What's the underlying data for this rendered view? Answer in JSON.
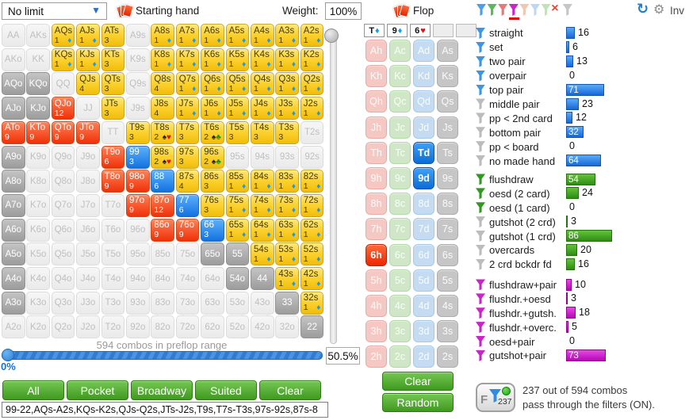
{
  "toolbar": {
    "game_type": "No limit",
    "starting_hand_label": "Starting hand",
    "weight_label": "Weight:",
    "weight_value": "100%",
    "flop_label": "Flop",
    "inv_label": "Inv",
    "funnels": [
      {
        "kind": "funnel",
        "color": "#4a9ef0",
        "selected": false
      },
      {
        "kind": "funnel",
        "color": "#5cb85c",
        "selected": false
      },
      {
        "kind": "funnel",
        "color": "#e87878",
        "selected": false
      },
      {
        "kind": "funnel",
        "color": "#cc22cc",
        "selected": true
      },
      {
        "kind": "funnel",
        "color": "#f0c8b0",
        "selected": false
      },
      {
        "kind": "funnel",
        "color": "#bcd8f2",
        "selected": false
      },
      {
        "kind": "funnel",
        "color": "#c2e2b8",
        "selected": false
      },
      {
        "kind": "x",
        "color": "#e8564a",
        "selected": false
      },
      {
        "kind": "funnel",
        "color": "#c6c6c6",
        "selected": false
      }
    ]
  },
  "hand_grid": {
    "rows": [
      [
        [
          "AA",
          "o"
        ],
        [
          "AKs",
          "o"
        ],
        [
          "AQs",
          "y",
          "1",
          "d"
        ],
        [
          "AJs",
          "y",
          "1",
          "d"
        ],
        [
          "ATs",
          "y",
          "3",
          ""
        ],
        [
          "A9s",
          "o"
        ],
        [
          "A8s",
          "y",
          "1",
          "d"
        ],
        [
          "A7s",
          "y",
          "1",
          "d"
        ],
        [
          "A6s",
          "y",
          "1",
          "d"
        ],
        [
          "A5s",
          "y",
          "1",
          "d"
        ],
        [
          "A4s",
          "y",
          "1",
          "d"
        ],
        [
          "A3s",
          "y",
          "1",
          "d"
        ],
        [
          "A2s",
          "y",
          "1",
          "d"
        ]
      ],
      [
        [
          "AKo",
          "o"
        ],
        [
          "KK",
          "o"
        ],
        [
          "KQs",
          "y",
          "1",
          "d"
        ],
        [
          "KJs",
          "y",
          "1",
          "d"
        ],
        [
          "KTs",
          "y",
          "3",
          ""
        ],
        [
          "K9s",
          "o"
        ],
        [
          "K8s",
          "y",
          "1",
          "d"
        ],
        [
          "K7s",
          "y",
          "1",
          "d"
        ],
        [
          "K6s",
          "y",
          "1",
          "d"
        ],
        [
          "K5s",
          "y",
          "1",
          "d"
        ],
        [
          "K4s",
          "y",
          "1",
          "d"
        ],
        [
          "K3s",
          "y",
          "1",
          "d"
        ],
        [
          "K2s",
          "y",
          "1",
          "d"
        ]
      ],
      [
        [
          "AQo",
          "g"
        ],
        [
          "KQo",
          "g"
        ],
        [
          "QQ",
          "o"
        ],
        [
          "QJs",
          "y",
          "4",
          ""
        ],
        [
          "QTs",
          "y",
          "3",
          ""
        ],
        [
          "Q9s",
          "o"
        ],
        [
          "Q8s",
          "y",
          "4",
          ""
        ],
        [
          "Q7s",
          "y",
          "1",
          "d"
        ],
        [
          "Q6s",
          "y",
          "1",
          "d"
        ],
        [
          "Q5s",
          "y",
          "1",
          "d"
        ],
        [
          "Q4s",
          "y",
          "1",
          "d"
        ],
        [
          "Q3s",
          "y",
          "1",
          "d"
        ],
        [
          "Q2s",
          "y",
          "1",
          "d"
        ]
      ],
      [
        [
          "AJo",
          "g"
        ],
        [
          "KJo",
          "g"
        ],
        [
          "QJo",
          "r",
          "12",
          ""
        ],
        [
          "JJ",
          "o"
        ],
        [
          "JTs",
          "y",
          "3",
          ""
        ],
        [
          "J9s",
          "o"
        ],
        [
          "J8s",
          "y",
          "4",
          ""
        ],
        [
          "J7s",
          "y",
          "1",
          "d"
        ],
        [
          "J6s",
          "y",
          "1",
          "d"
        ],
        [
          "J5s",
          "y",
          "1",
          "d"
        ],
        [
          "J4s",
          "y",
          "1",
          "d"
        ],
        [
          "J3s",
          "y",
          "1",
          "d"
        ],
        [
          "J2s",
          "y",
          "1",
          "d"
        ]
      ],
      [
        [
          "ATo",
          "r",
          "9",
          ""
        ],
        [
          "KTo",
          "r",
          "9",
          ""
        ],
        [
          "QTo",
          "r",
          "9",
          ""
        ],
        [
          "JTo",
          "r",
          "9",
          ""
        ],
        [
          "TT",
          "o"
        ],
        [
          "T9s",
          "y",
          "3",
          ""
        ],
        [
          "T8s",
          "y",
          "2",
          "sh"
        ],
        [
          "T7s",
          "y",
          "3",
          ""
        ],
        [
          "T6s",
          "y",
          "2",
          "sc"
        ],
        [
          "T5s",
          "y",
          "3",
          ""
        ],
        [
          "T4s",
          "y",
          "3",
          ""
        ],
        [
          "T3s",
          "y",
          "3",
          ""
        ],
        [
          "T2s",
          "o"
        ]
      ],
      [
        [
          "A9o",
          "g"
        ],
        [
          "K9o",
          "o"
        ],
        [
          "Q9o",
          "o"
        ],
        [
          "J9o",
          "o"
        ],
        [
          "T9o",
          "r",
          "6",
          ""
        ],
        [
          "99",
          "b",
          "3",
          ""
        ],
        [
          "98s",
          "y",
          "2",
          "sh"
        ],
        [
          "97s",
          "y",
          "3",
          ""
        ],
        [
          "96s",
          "y",
          "2",
          "sc"
        ],
        [
          "95s",
          "o"
        ],
        [
          "94s",
          "o"
        ],
        [
          "93s",
          "o"
        ],
        [
          "92s",
          "o"
        ]
      ],
      [
        [
          "A8o",
          "g"
        ],
        [
          "K8o",
          "o"
        ],
        [
          "Q8o",
          "o"
        ],
        [
          "J8o",
          "o"
        ],
        [
          "T8o",
          "r",
          "9",
          ""
        ],
        [
          "98o",
          "r",
          "9",
          ""
        ],
        [
          "88",
          "b",
          "6",
          ""
        ],
        [
          "87s",
          "y",
          "4",
          ""
        ],
        [
          "86s",
          "y",
          "3",
          ""
        ],
        [
          "85s",
          "y",
          "1",
          "d"
        ],
        [
          "84s",
          "y",
          "1",
          "d"
        ],
        [
          "83s",
          "y",
          "1",
          "d"
        ],
        [
          "82s",
          "y",
          "1",
          "d"
        ]
      ],
      [
        [
          "A7o",
          "g"
        ],
        [
          "K7o",
          "o"
        ],
        [
          "Q7o",
          "o"
        ],
        [
          "J7o",
          "o"
        ],
        [
          "T7o",
          "o"
        ],
        [
          "97o",
          "r",
          "9",
          ""
        ],
        [
          "87o",
          "r",
          "12",
          ""
        ],
        [
          "77",
          "b",
          "6",
          ""
        ],
        [
          "76s",
          "y",
          "3",
          ""
        ],
        [
          "75s",
          "y",
          "1",
          "d"
        ],
        [
          "74s",
          "y",
          "1",
          "d"
        ],
        [
          "73s",
          "y",
          "1",
          "d"
        ],
        [
          "72s",
          "y",
          "1",
          "d"
        ]
      ],
      [
        [
          "A6o",
          "g"
        ],
        [
          "K6o",
          "o"
        ],
        [
          "Q6o",
          "o"
        ],
        [
          "J6o",
          "o"
        ],
        [
          "T6o",
          "o"
        ],
        [
          "96o",
          "o"
        ],
        [
          "86o",
          "r",
          "9",
          ""
        ],
        [
          "76o",
          "r",
          "9",
          ""
        ],
        [
          "66",
          "b",
          "3",
          ""
        ],
        [
          "65s",
          "y",
          "1",
          "d"
        ],
        [
          "64s",
          "y",
          "1",
          "d"
        ],
        [
          "63s",
          "y",
          "1",
          "d"
        ],
        [
          "62s",
          "y",
          "1",
          "d"
        ]
      ],
      [
        [
          "A5o",
          "g"
        ],
        [
          "K5o",
          "o"
        ],
        [
          "Q5o",
          "o"
        ],
        [
          "J5o",
          "o"
        ],
        [
          "T5o",
          "o"
        ],
        [
          "95o",
          "o"
        ],
        [
          "85o",
          "o"
        ],
        [
          "75o",
          "o"
        ],
        [
          "65o",
          "g"
        ],
        [
          "55",
          "g"
        ],
        [
          "54s",
          "y",
          "1",
          "d"
        ],
        [
          "53s",
          "y",
          "1",
          "d"
        ],
        [
          "52s",
          "y",
          "1",
          "d"
        ]
      ],
      [
        [
          "A4o",
          "g"
        ],
        [
          "K4o",
          "o"
        ],
        [
          "Q4o",
          "o"
        ],
        [
          "J4o",
          "o"
        ],
        [
          "T4o",
          "o"
        ],
        [
          "94o",
          "o"
        ],
        [
          "84o",
          "o"
        ],
        [
          "74o",
          "o"
        ],
        [
          "64o",
          "o"
        ],
        [
          "54o",
          "g"
        ],
        [
          "44",
          "g"
        ],
        [
          "43s",
          "y",
          "1",
          "d"
        ],
        [
          "42s",
          "y",
          "1",
          "d"
        ]
      ],
      [
        [
          "A3o",
          "g"
        ],
        [
          "K3o",
          "o"
        ],
        [
          "Q3o",
          "o"
        ],
        [
          "J3o",
          "o"
        ],
        [
          "T3o",
          "o"
        ],
        [
          "93o",
          "o"
        ],
        [
          "83o",
          "o"
        ],
        [
          "73o",
          "o"
        ],
        [
          "63o",
          "o"
        ],
        [
          "53o",
          "o"
        ],
        [
          "43o",
          "o"
        ],
        [
          "33",
          "g"
        ],
        [
          "32s",
          "y",
          "1",
          "d"
        ]
      ],
      [
        [
          "A2o",
          "o"
        ],
        [
          "K2o",
          "o"
        ],
        [
          "Q2o",
          "o"
        ],
        [
          "J2o",
          "o"
        ],
        [
          "T2o",
          "o"
        ],
        [
          "92o",
          "o"
        ],
        [
          "82o",
          "o"
        ],
        [
          "72o",
          "o"
        ],
        [
          "62o",
          "o"
        ],
        [
          "52o",
          "o"
        ],
        [
          "42o",
          "o"
        ],
        [
          "32o",
          "o"
        ],
        [
          "22",
          "g"
        ]
      ]
    ]
  },
  "flop": {
    "clear_label": "Clear",
    "random_label": "Random",
    "board_slots": [
      {
        "rank": "T",
        "suit": "d"
      },
      {
        "rank": "9",
        "suit": "d"
      },
      {
        "rank": "6",
        "suit": "h"
      },
      {},
      {}
    ],
    "ranks": [
      "A",
      "K",
      "Q",
      "J",
      "T",
      "9",
      "8",
      "7",
      "6",
      "5",
      "4",
      "3",
      "2"
    ],
    "suits": [
      "h",
      "c",
      "d",
      "s"
    ],
    "selected": [
      "Td",
      "9d",
      "6h"
    ]
  },
  "stats": {
    "made": [
      {
        "label": "straight",
        "value": 16,
        "funnel": "blue"
      },
      {
        "label": "set",
        "value": 6,
        "funnel": "blue"
      },
      {
        "label": "two pair",
        "value": 13,
        "funnel": "blue"
      },
      {
        "label": "overpair",
        "value": 0,
        "funnel": "blue"
      },
      {
        "label": "top pair",
        "value": 71,
        "funnel": "blue"
      },
      {
        "label": "middle pair",
        "value": 23,
        "funnel": "gray"
      },
      {
        "label": "pp < 2nd card",
        "value": 12,
        "funnel": "gray"
      },
      {
        "label": "bottom pair",
        "value": 32,
        "funnel": "gray"
      },
      {
        "label": "pp < board",
        "value": 0,
        "funnel": "gray"
      },
      {
        "label": "no made hand",
        "value": 64,
        "funnel": "gray"
      }
    ],
    "draws": [
      {
        "label": "flushdraw",
        "value": 54,
        "funnel": "green"
      },
      {
        "label": "oesd (2 card)",
        "value": 24,
        "funnel": "green"
      },
      {
        "label": "oesd (1 card)",
        "value": 0,
        "funnel": "green"
      },
      {
        "label": "gutshot (2 crd)",
        "value": 3,
        "funnel": "gray"
      },
      {
        "label": "gutshot (1 crd)",
        "value": 86,
        "funnel": "gray"
      },
      {
        "label": "overcards",
        "value": 20,
        "funnel": "gray"
      },
      {
        "label": "2 crd bckdr fd",
        "value": 16,
        "funnel": "gray"
      }
    ],
    "combos": [
      {
        "label": "flushdraw+pair",
        "value": 10,
        "funnel": "magenta"
      },
      {
        "label": "flushdr.+oesd",
        "value": 3,
        "funnel": "magenta"
      },
      {
        "label": "flushdr.+gutsh.",
        "value": 18,
        "funnel": "magenta"
      },
      {
        "label": "flushdr.+overc.",
        "value": 5,
        "funnel": "magenta"
      },
      {
        "label": "oesd+pair",
        "value": 0,
        "funnel": "magenta"
      },
      {
        "label": "gutshot+pair",
        "value": 73,
        "funnel": "magenta"
      }
    ]
  },
  "range": {
    "combos_label": "594 combos in preflop range",
    "percent_value": "50.5%",
    "min_label": "0%",
    "buttons": [
      "All",
      "Pocket",
      "Broadway",
      "Suited",
      "Clear"
    ],
    "text": "99-22,AQs-A2s,KQs-K2s,QJs-Q2s,JTs-J2s,T9s,T7s-T3s,97s-92s,87s-8"
  },
  "filter_status": {
    "badge_count": "237",
    "line1": "237 out of 594 combos",
    "line2": "pass through the filters (ON)."
  },
  "suit_colors": {
    "d": "#1b9be8",
    "s": "#1c1c1c",
    "h": "#e41010",
    "c": "#169416"
  }
}
